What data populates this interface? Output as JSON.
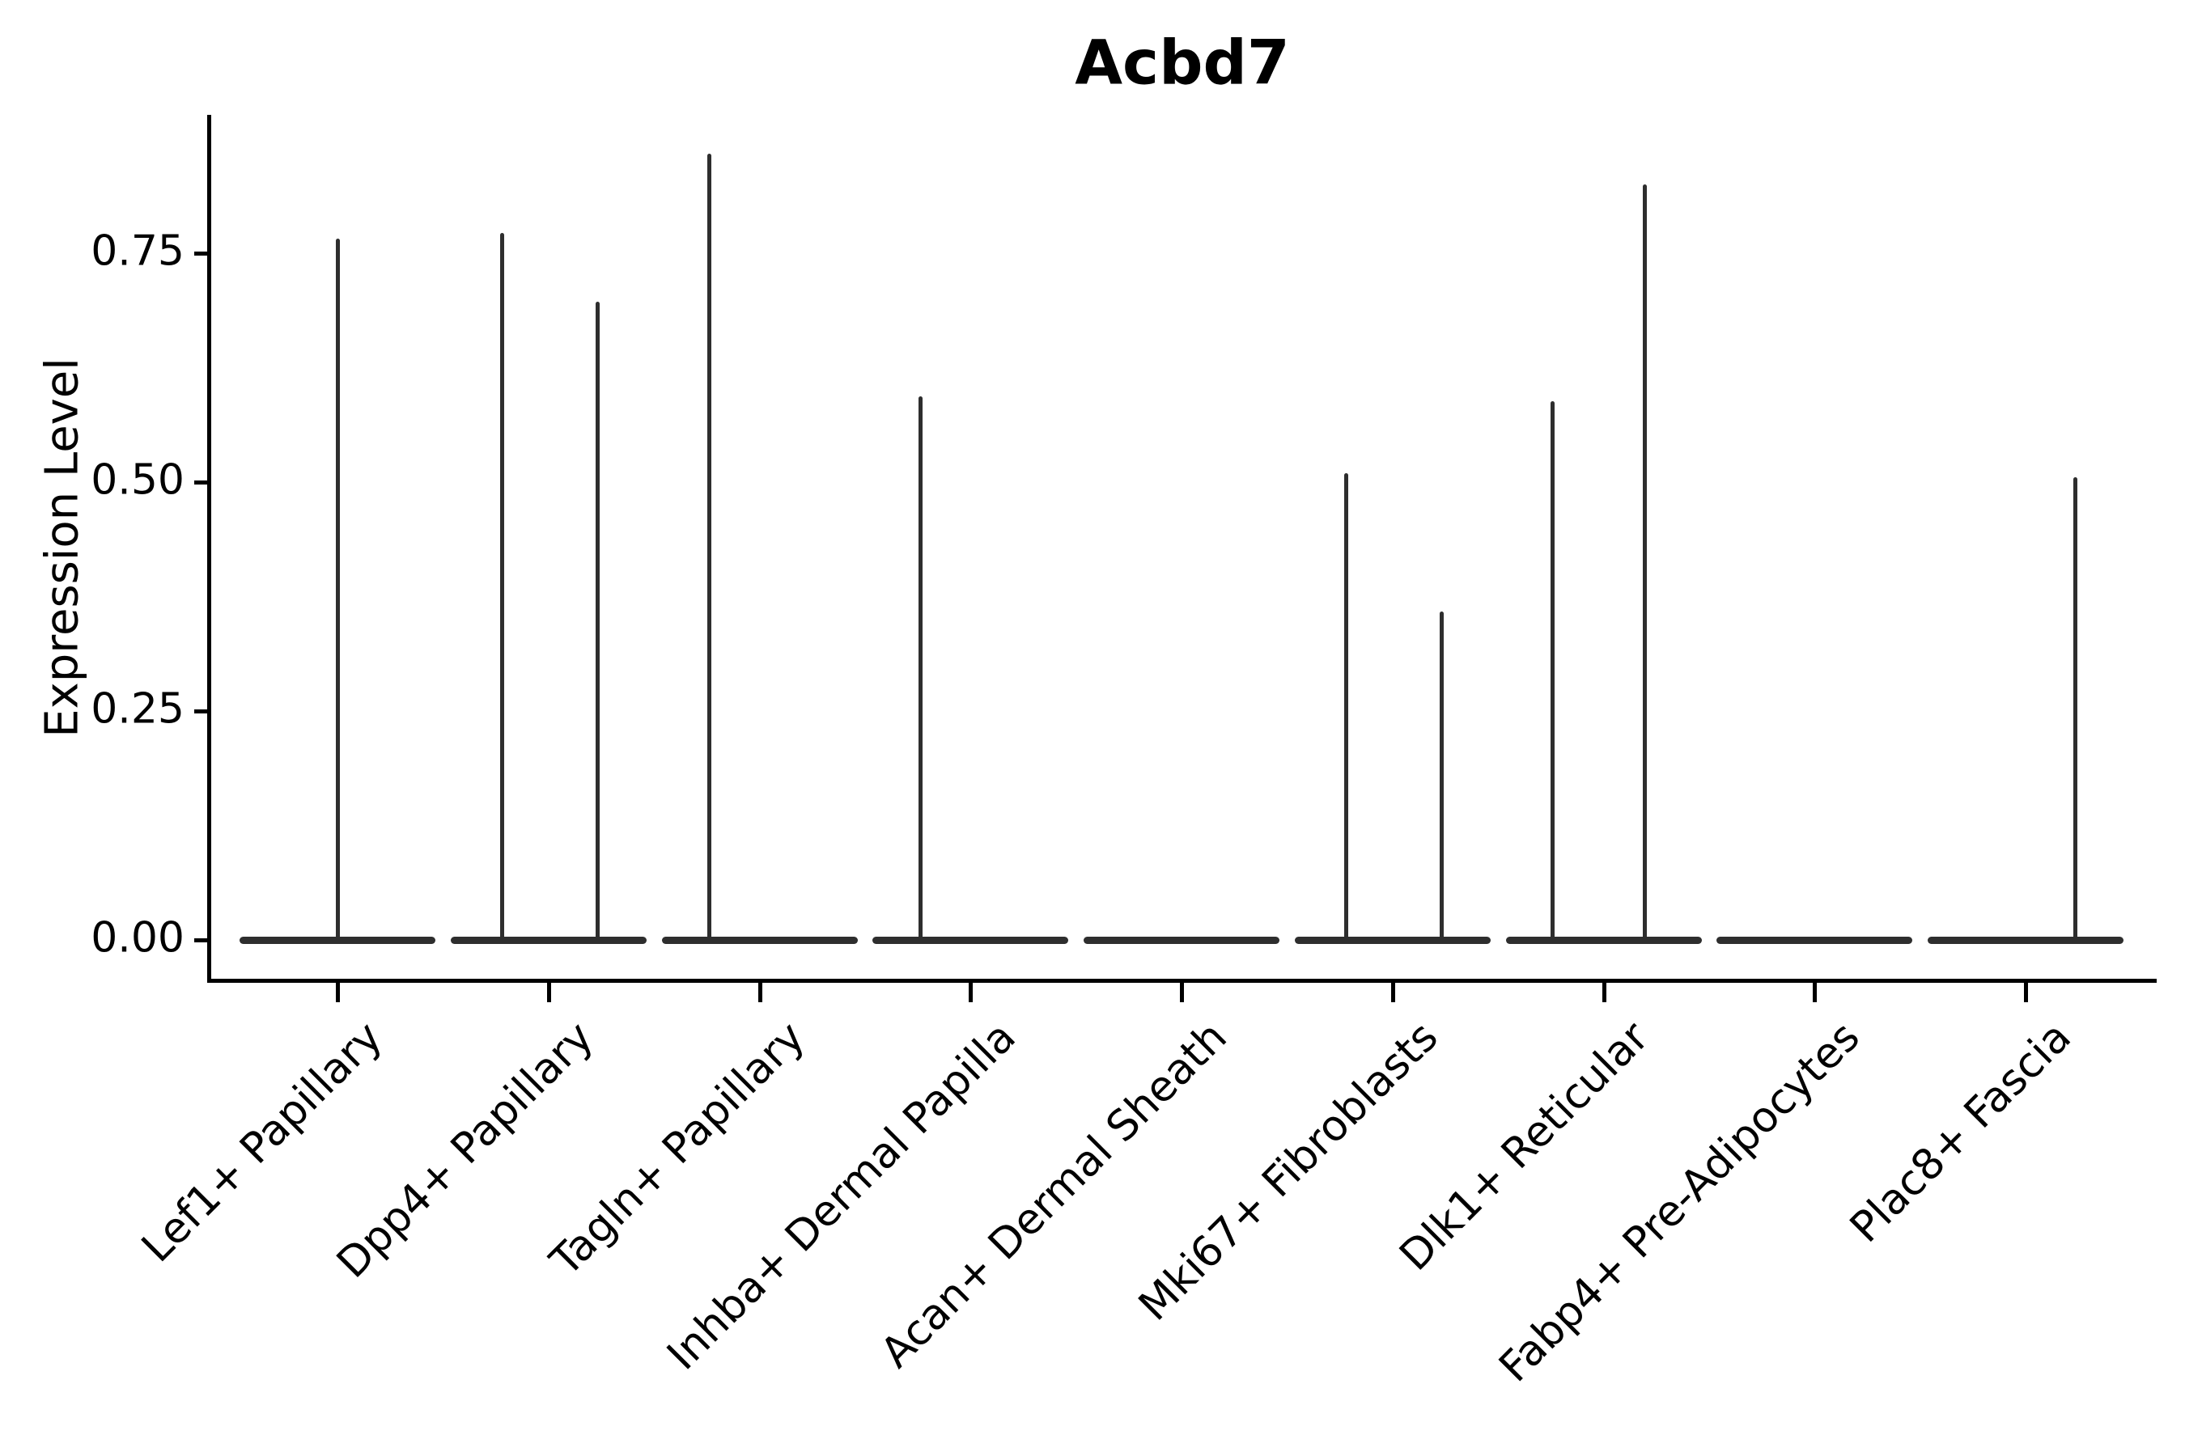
{
  "chart_data": {
    "type": "violin",
    "title": "Acbd7",
    "ylabel": "Expression Level",
    "xlabel": "",
    "grid": false,
    "legend_position": "none",
    "background_color": "#ffffff",
    "violin_color": "#2e2e2e",
    "axis_color": "#000000",
    "ylim": [
      -0.04,
      0.9
    ],
    "ytick_labels": [
      "0.00",
      "0.25",
      "0.50",
      "0.75"
    ],
    "ytick_values": [
      0.0,
      0.25,
      0.5,
      0.75
    ],
    "categories": [
      "Lef1+ Papillary",
      "Dpp4+ Papillary",
      "Tagln+ Papillary",
      "Inhba+ Dermal Papilla",
      "Acan+ Dermal Sheath",
      "Mki67+ Fibroblasts",
      "Dlk1+ Reticular",
      "Fabp4+ Pre-Adipocytes",
      "Plac8+ Fascia"
    ],
    "series": [
      {
        "category": "Lef1+ Papillary",
        "baseline_value": 0,
        "spikes": [
          {
            "dx": 0,
            "max": 0.766
          }
        ]
      },
      {
        "category": "Dpp4+ Papillary",
        "baseline_value": 0,
        "spikes": [
          {
            "dx": -57,
            "max": 0.772
          },
          {
            "dx": 61,
            "max": 0.697
          }
        ]
      },
      {
        "category": "Tagln+ Papillary",
        "baseline_value": 0,
        "spikes": [
          {
            "dx": -62,
            "max": 0.859
          }
        ]
      },
      {
        "category": "Inhba+ Dermal Papilla",
        "baseline_value": 0,
        "spikes": [
          {
            "dx": -62,
            "max": 0.594
          }
        ]
      },
      {
        "category": "Acan+ Dermal Sheath",
        "baseline_value": 0,
        "spikes": []
      },
      {
        "category": "Mki67+ Fibroblasts",
        "baseline_value": 0,
        "spikes": [
          {
            "dx": -57,
            "max": 0.51
          },
          {
            "dx": 61,
            "max": 0.359
          }
        ]
      },
      {
        "category": "Dlk1+ Reticular",
        "baseline_value": 0,
        "spikes": [
          {
            "dx": -63,
            "max": 0.588
          },
          {
            "dx": 51,
            "max": 0.825
          }
        ]
      },
      {
        "category": "Fabp4+ Pre-Adipocytes",
        "baseline_value": 0,
        "spikes": []
      },
      {
        "category": "Plac8+ Fascia",
        "baseline_value": 0,
        "spikes": [
          {
            "dx": 61,
            "max": 0.505
          }
        ]
      }
    ]
  }
}
